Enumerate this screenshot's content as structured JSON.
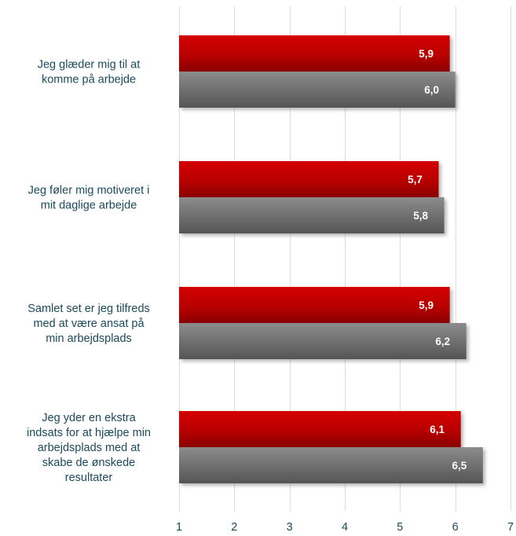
{
  "chart_data": {
    "type": "bar",
    "orientation": "horizontal",
    "categories": [
      "Jeg glæder mig til at komme på arbejde",
      "Jeg føler mig motiveret i mit daglige arbejde",
      "Samlet set er jeg tilfreds med at være ansat på min arbejdsplads",
      "Jeg yder en ekstra indsats for at hjælpe min arbejdsplads med at skabe de ønskede resultater"
    ],
    "category_lines": [
      [
        "Jeg glæder mig til at",
        "komme på arbejde"
      ],
      [
        "Jeg føler mig motiveret i",
        "mit daglige arbejde"
      ],
      [
        "Samlet set er jeg tilfreds",
        "med at være ansat på",
        "min arbejdsplads"
      ],
      [
        "Jeg yder en ekstra",
        "indsats for at hjælpe min",
        "arbejdsplads med at",
        "skabe de ønskede",
        "resultater"
      ]
    ],
    "series": [
      {
        "color": "#c00000",
        "values": [
          5.9,
          5.7,
          5.9,
          6.1
        ],
        "labels": [
          "5,9",
          "5,7",
          "5,9",
          "6,1"
        ]
      },
      {
        "color": "#7f7f7f",
        "values": [
          6.0,
          5.8,
          6.2,
          6.5
        ],
        "labels": [
          "6,0",
          "5,8",
          "6,2",
          "6,5"
        ]
      }
    ],
    "xlim": [
      1,
      7
    ],
    "xticks": [
      "1",
      "2",
      "3",
      "4",
      "5",
      "6",
      "7"
    ],
    "grid": true,
    "legend": "none"
  }
}
